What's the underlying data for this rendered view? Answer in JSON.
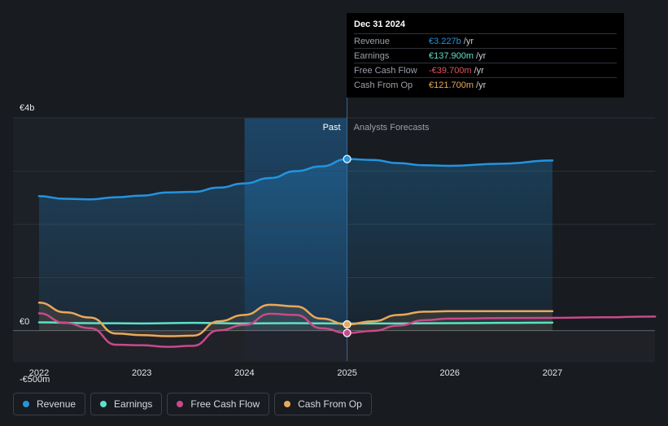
{
  "colors": {
    "revenue": "#2394df",
    "earnings": "#5fe0c8",
    "free_cash_flow": "#c84a8a",
    "cash_from_op": "#e8a95b",
    "background": "#181b20",
    "grid": "#2c3037"
  },
  "tooltip": {
    "date": "Dec 31 2024",
    "rows": [
      {
        "label": "Revenue",
        "value": "€3.227b",
        "unit": "/yr",
        "color": "#2394df"
      },
      {
        "label": "Earnings",
        "value": "€137.900m",
        "unit": "/yr",
        "color": "#5fe0c8"
      },
      {
        "label": "Free Cash Flow",
        "value": "-€39.700m",
        "unit": "/yr",
        "color": "#e0555b"
      },
      {
        "label": "Cash From Op",
        "value": "€121.700m",
        "unit": "/yr",
        "color": "#e8a95b"
      }
    ]
  },
  "legend": [
    {
      "label": "Revenue",
      "color": "#2394df"
    },
    {
      "label": "Earnings",
      "color": "#5fe0c8"
    },
    {
      "label": "Free Cash Flow",
      "color": "#c84a8a"
    },
    {
      "label": "Cash From Op",
      "color": "#e8a95b"
    }
  ],
  "chart_data": {
    "type": "line",
    "title": "",
    "xlabel": "",
    "ylabel": "",
    "ylim": [
      -500,
      4000
    ],
    "xlim": [
      2021.8,
      2028.0
    ],
    "y_tick_labels": [
      {
        "value": 4000,
        "label": "€4b"
      },
      {
        "value": 0,
        "label": "€0"
      },
      {
        "value": -500,
        "label": "-€500m"
      }
    ],
    "x_ticks": [
      2022,
      2023,
      2024,
      2025,
      2026,
      2027
    ],
    "x_tick_labels": [
      "2022",
      "2023",
      "2024",
      "2025",
      "2026",
      "2027"
    ],
    "past_label": "Past",
    "forecast_label": "Analysts Forecasts",
    "divider_x": 2025.0,
    "highlight_start_x": 2024.0,
    "series": [
      {
        "name": "Revenue",
        "key": "revenue",
        "x": [
          2022.0,
          2022.25,
          2022.5,
          2022.75,
          2023.0,
          2023.25,
          2023.5,
          2023.75,
          2024.0,
          2024.25,
          2024.5,
          2024.75,
          2025.0,
          2025.25,
          2025.5,
          2025.75,
          2026.0,
          2026.5,
          2027.0
        ],
        "values": [
          2530,
          2480,
          2470,
          2510,
          2540,
          2600,
          2610,
          2690,
          2770,
          2870,
          3000,
          3090,
          3227,
          3210,
          3150,
          3110,
          3100,
          3140,
          3200
        ]
      },
      {
        "name": "Earnings",
        "key": "earnings",
        "x": [
          2022.0,
          2022.5,
          2023.0,
          2023.5,
          2024.0,
          2024.5,
          2025.0,
          2025.5,
          2026.0,
          2026.5,
          2027.0
        ],
        "values": [
          160,
          145,
          140,
          150,
          140,
          145,
          138,
          140,
          145,
          150,
          155
        ]
      },
      {
        "name": "Free Cash Flow",
        "key": "free_cash_flow",
        "x": [
          2022.0,
          2022.25,
          2022.5,
          2022.75,
          2023.0,
          2023.25,
          2023.5,
          2023.75,
          2024.0,
          2024.25,
          2024.5,
          2024.75,
          2025.0,
          2025.25,
          2025.5,
          2025.75,
          2026.0,
          2026.5,
          2027.0,
          2027.5,
          2028.0
        ],
        "values": [
          330,
          150,
          50,
          -260,
          -270,
          -300,
          -280,
          10,
          110,
          320,
          300,
          50,
          -40,
          0,
          100,
          200,
          230,
          240,
          245,
          255,
          270
        ]
      },
      {
        "name": "Cash From Op",
        "key": "cash_from_op",
        "x": [
          2022.0,
          2022.25,
          2022.5,
          2022.75,
          2023.0,
          2023.25,
          2023.5,
          2023.75,
          2024.0,
          2024.25,
          2024.5,
          2024.75,
          2025.0,
          2025.25,
          2025.5,
          2025.75,
          2026.0,
          2026.5,
          2027.0
        ],
        "values": [
          530,
          350,
          250,
          -50,
          -80,
          -100,
          -90,
          180,
          300,
          490,
          460,
          230,
          122,
          180,
          300,
          360,
          370,
          370,
          370
        ]
      }
    ],
    "markers": [
      {
        "key": "revenue",
        "x": 2025.0,
        "value": 3227
      },
      {
        "key": "cash_from_op",
        "x": 2025.0,
        "value": 122
      },
      {
        "key": "free_cash_flow",
        "x": 2025.0,
        "value": -40
      }
    ]
  }
}
